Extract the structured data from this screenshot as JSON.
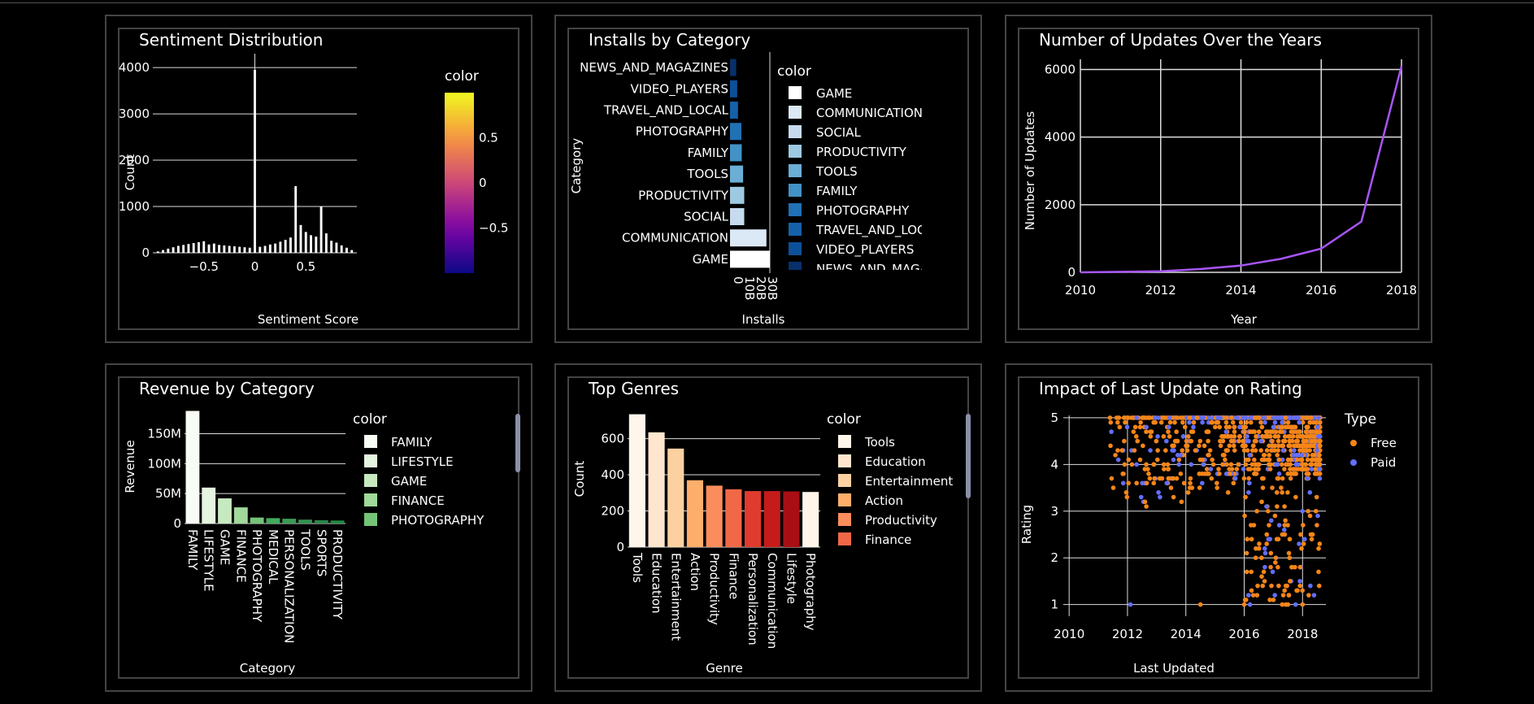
{
  "chart_data": [
    {
      "id": "sentiment",
      "type": "bar",
      "title": "Sentiment Distribution",
      "xlabel": "Sentiment Score",
      "ylabel": "Count",
      "xlim": [
        -1,
        1
      ],
      "ylim": [
        0,
        4300
      ],
      "xticks": [
        -0.5,
        0,
        0.5
      ],
      "xtick_labels": [
        "−0.5",
        "0",
        "0.5"
      ],
      "yticks": [
        0,
        1000,
        2000,
        3000,
        4000
      ],
      "ytick_labels": [
        "0",
        "1000",
        "2000",
        "3000",
        "4000"
      ],
      "colorbar": {
        "title": "color",
        "ticks": [
          -0.5,
          0,
          0.5
        ],
        "tick_labels": [
          "−0.5",
          "0",
          "0.5"
        ],
        "range": [
          -1,
          1
        ]
      },
      "x": [
        -0.95,
        -0.9,
        -0.85,
        -0.8,
        -0.75,
        -0.7,
        -0.65,
        -0.6,
        -0.55,
        -0.5,
        -0.45,
        -0.4,
        -0.35,
        -0.3,
        -0.25,
        -0.2,
        -0.15,
        -0.1,
        -0.05,
        0,
        0.05,
        0.1,
        0.15,
        0.2,
        0.25,
        0.3,
        0.35,
        0.4,
        0.45,
        0.5,
        0.55,
        0.6,
        0.65,
        0.7,
        0.75,
        0.8,
        0.85,
        0.9,
        0.95
      ],
      "values": [
        30,
        60,
        90,
        120,
        150,
        170,
        190,
        210,
        230,
        250,
        180,
        200,
        170,
        160,
        150,
        140,
        130,
        120,
        110,
        3950,
        130,
        150,
        180,
        200,
        240,
        280,
        330,
        1440,
        600,
        450,
        380,
        350,
        1000,
        420,
        260,
        220,
        160,
        110,
        60
      ],
      "grid": true
    },
    {
      "id": "installs",
      "type": "bar",
      "orientation": "horizontal",
      "title": "Installs by Category",
      "xlabel": "Installs",
      "ylabel": "Category",
      "xlim": [
        0,
        35000000000
      ],
      "xticks": [
        0,
        10000000000,
        20000000000,
        30000000000
      ],
      "xtick_labels": [
        "0",
        "10B",
        "20B",
        "30B"
      ],
      "categories": [
        "GAME",
        "COMMUNICATION",
        "SOCIAL",
        "PRODUCTIVITY",
        "TOOLS",
        "FAMILY",
        "PHOTOGRAPHY",
        "TRAVEL_AND_LOCAL",
        "VIDEO_PLAYERS",
        "NEWS_AND_MAGAZINES"
      ],
      "values": [
        35000000000,
        32000000000,
        12500000000,
        12500000000,
        11500000000,
        10300000000,
        10000000000,
        7000000000,
        6300000000,
        5400000000
      ],
      "colors": [
        "#ffffff",
        "#dbe8f5",
        "#c6dbef",
        "#9ecae1",
        "#6baed6",
        "#4292c6",
        "#2171b5",
        "#1561a9",
        "#0d509a",
        "#08306b"
      ],
      "legend": {
        "title": "color",
        "items": [
          "GAME",
          "COMMUNICATION",
          "SOCIAL",
          "PRODUCTIVITY",
          "TOOLS",
          "FAMILY",
          "PHOTOGRAPHY",
          "TRAVEL_AND_LOCAL",
          "VIDEO_PLAYERS",
          "NEWS_AND_MAGAZINES"
        ]
      }
    },
    {
      "id": "updates",
      "type": "line",
      "title": "Number of Updates Over the Years",
      "xlabel": "Year",
      "ylabel": "Number of Updates",
      "xlim": [
        2010,
        2018
      ],
      "ylim": [
        0,
        6300
      ],
      "xticks": [
        2010,
        2012,
        2014,
        2016,
        2018
      ],
      "yticks": [
        0,
        2000,
        4000,
        6000
      ],
      "x": [
        2010,
        2011,
        2012,
        2013,
        2014,
        2015,
        2016,
        2017,
        2018
      ],
      "values": [
        1,
        15,
        30,
        100,
        200,
        400,
        700,
        1500,
        6100
      ],
      "color": "#a855f7",
      "grid": true
    },
    {
      "id": "revenue",
      "type": "bar",
      "title": "Revenue by Category",
      "xlabel": "Category",
      "ylabel": "Revenue",
      "ylim": [
        0,
        190000000
      ],
      "yticks": [
        0,
        50000000,
        100000000,
        150000000
      ],
      "ytick_labels": [
        "0",
        "50M",
        "100M",
        "150M"
      ],
      "categories": [
        "FAMILY",
        "LIFESTYLE",
        "GAME",
        "FINANCE",
        "PHOTOGRAPHY",
        "MEDICAL",
        "PERSONALIZATION",
        "TOOLS",
        "SPORTS",
        "PRODUCTIVITY"
      ],
      "values": [
        188000000,
        60000000,
        42000000,
        27000000,
        10000000,
        9000000,
        8000000,
        6500000,
        5500000,
        5000000
      ],
      "colors": [
        "#f7fcf5",
        "#e5f5e0",
        "#c7e9c0",
        "#a1d99b",
        "#74c476",
        "#41ab5d",
        "#3a9d55",
        "#339250",
        "#2a884b",
        "#238b45"
      ],
      "legend": {
        "title": "color",
        "items": [
          "FAMILY",
          "LIFESTYLE",
          "GAME",
          "FINANCE",
          "PHOTOGRAPHY"
        ]
      }
    },
    {
      "id": "genres",
      "type": "bar",
      "title": "Top Genres",
      "xlabel": "Genre",
      "ylabel": "Count",
      "ylim": [
        0,
        760
      ],
      "yticks": [
        0,
        200,
        400,
        600
      ],
      "categories": [
        "Tools",
        "Education",
        "Entertainment",
        "Action",
        "Productivity",
        "Finance",
        "Personalization",
        "Communication",
        "Lifestyle",
        "Photography"
      ],
      "values": [
        735,
        635,
        545,
        370,
        340,
        320,
        310,
        310,
        308,
        305
      ],
      "colors": [
        "#fff5eb",
        "#fee6ce",
        "#fdd0a2",
        "#fdae6b",
        "#fb8d5c",
        "#f16847",
        "#e03b2e",
        "#c51b1b",
        "#a80f15",
        "#fff5eb"
      ],
      "legend": {
        "title": "color",
        "items": [
          "Tools",
          "Education",
          "Entertainment",
          "Action",
          "Productivity",
          "Finance"
        ]
      }
    },
    {
      "id": "rating",
      "type": "scatter",
      "title": "Impact of Last Update on Rating",
      "xlabel": "Last Updated",
      "ylabel": "Rating",
      "xlim": [
        2009.8,
        2018.8
      ],
      "ylim": [
        0.75,
        5.05
      ],
      "xticks": [
        2010,
        2012,
        2014,
        2016,
        2018
      ],
      "yticks": [
        1,
        2,
        3,
        4,
        5
      ],
      "series": [
        {
          "name": "Free",
          "color": "#f58518"
        },
        {
          "name": "Paid",
          "color": "#636efa"
        }
      ],
      "legend": {
        "title": "Type"
      },
      "grid": true
    }
  ]
}
